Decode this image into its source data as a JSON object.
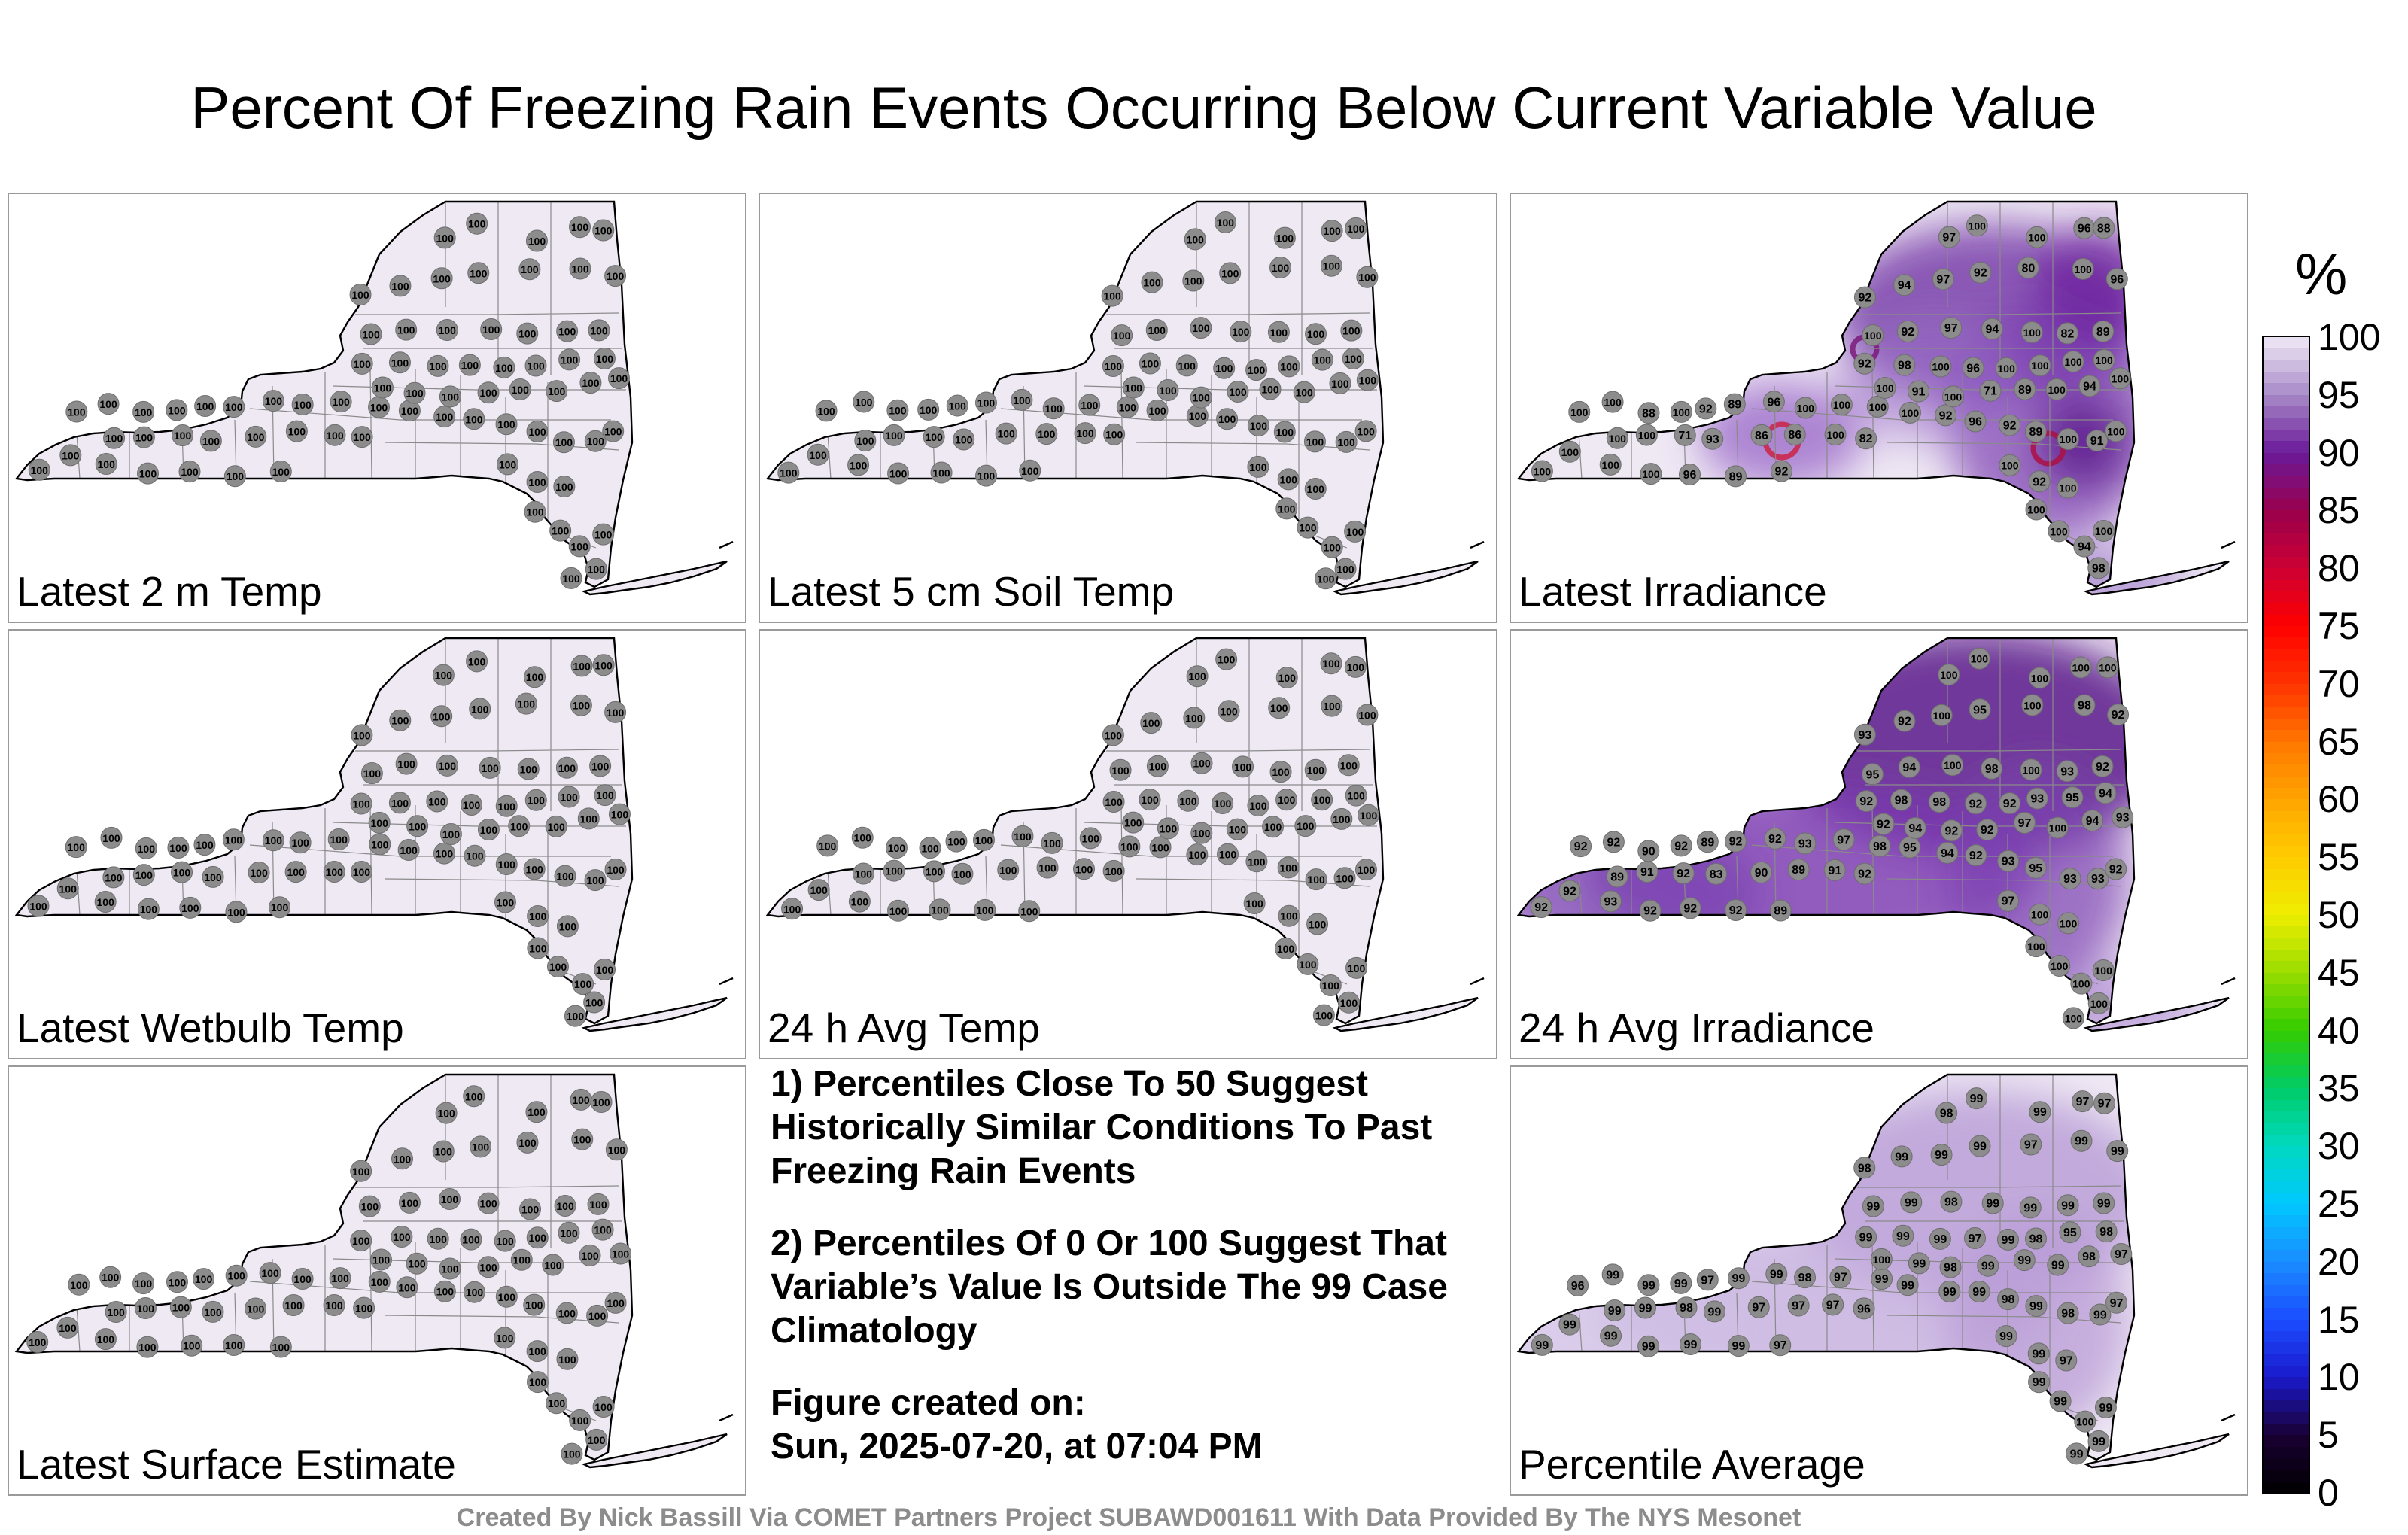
{
  "title": "Percent Of Freezing Rain Events Occurring Below Current Variable Value",
  "colorbar": {
    "unit": "%",
    "ticks": [
      "100",
      "95",
      "90",
      "85",
      "80",
      "75",
      "70",
      "65",
      "60",
      "55",
      "50",
      "45",
      "40",
      "35",
      "30",
      "25",
      "20",
      "15",
      "10",
      "5",
      "0"
    ],
    "stops": [
      {
        "v": 0,
        "c": "#000000"
      },
      {
        "v": 5,
        "c": "#1a0033"
      },
      {
        "v": 10,
        "c": "#1a1acc"
      },
      {
        "v": 15,
        "c": "#1a4dff"
      },
      {
        "v": 20,
        "c": "#1a8cff"
      },
      {
        "v": 25,
        "c": "#00c8ff"
      },
      {
        "v": 30,
        "c": "#00d9c0"
      },
      {
        "v": 35,
        "c": "#00cc66"
      },
      {
        "v": 40,
        "c": "#33cc00"
      },
      {
        "v": 45,
        "c": "#99dd00"
      },
      {
        "v": 50,
        "c": "#eeee00"
      },
      {
        "v": 55,
        "c": "#ffcc00"
      },
      {
        "v": 60,
        "c": "#ffa500"
      },
      {
        "v": 65,
        "c": "#ff7700"
      },
      {
        "v": 70,
        "c": "#ff3300"
      },
      {
        "v": 75,
        "c": "#ff0000"
      },
      {
        "v": 80,
        "c": "#cc0033"
      },
      {
        "v": 85,
        "c": "#99004d"
      },
      {
        "v": 90,
        "c": "#6a1a9a"
      },
      {
        "v": 95,
        "c": "#a889c8"
      },
      {
        "v": 100,
        "c": "#f0ebf5"
      }
    ]
  },
  "panels": [
    {
      "label": "Latest 2 m Temp",
      "type": "uniform",
      "value": "100"
    },
    {
      "label": "Latest 5 cm Soil Temp",
      "type": "uniform",
      "value": "100"
    },
    {
      "label": "Latest Irradiance",
      "type": "irradiance",
      "values": [
        "100",
        "100",
        "100",
        "100",
        "96",
        "89",
        "92",
        "100",
        "100",
        "71",
        "93",
        "86",
        "86",
        "100",
        "82",
        "100",
        "100",
        "88",
        "100",
        "92",
        "89",
        "96",
        "100",
        "100",
        "100",
        "100",
        "92",
        "96",
        "92",
        "89",
        "100",
        "91",
        "100",
        "100",
        "91",
        "100",
        "71",
        "89",
        "100",
        "94",
        "100",
        "92",
        "98",
        "100",
        "96",
        "100",
        "100",
        "100",
        "100",
        "100",
        "92",
        "97",
        "94",
        "100",
        "82",
        "89",
        "92",
        "94",
        "97",
        "92",
        "80",
        "100",
        "96",
        "100",
        "96",
        "88",
        "100",
        "97",
        "100",
        "92",
        "100",
        "100",
        "100",
        "94",
        "100",
        "98"
      ]
    },
    {
      "label": "Latest Wetbulb Temp",
      "type": "uniform",
      "value": "100"
    },
    {
      "label": "24 h Avg Temp",
      "type": "uniform",
      "value": "100"
    },
    {
      "label": "24 h Avg Irradiance",
      "type": "avgirr",
      "values": [
        "92",
        "92",
        "93",
        "92",
        "92",
        "92",
        "89",
        "89",
        "91",
        "92",
        "83",
        "90",
        "89",
        "91",
        "92",
        "92",
        "92",
        "90",
        "92",
        "89",
        "92",
        "92",
        "93",
        "97",
        "98",
        "95",
        "94",
        "92",
        "93",
        "95",
        "93",
        "93",
        "92",
        "92",
        "94",
        "92",
        "92",
        "97",
        "100",
        "94",
        "93",
        "92",
        "98",
        "98",
        "92",
        "92",
        "93",
        "95",
        "94",
        "95",
        "94",
        "100",
        "98",
        "100",
        "93",
        "92",
        "93",
        "92",
        "100",
        "95",
        "100",
        "98",
        "92",
        "100",
        "100",
        "100",
        "100",
        "100",
        "97",
        "100",
        "100",
        "100",
        "100",
        "100",
        "100",
        "100",
        "100",
        "100",
        "92",
        "100"
      ]
    },
    {
      "label": "Latest Surface Estimate",
      "type": "uniform",
      "value": "100"
    },
    {
      "label": "Percentile Average",
      "type": "avg",
      "values": [
        "99",
        "99",
        "99",
        "99",
        "99",
        "99",
        "97",
        "99",
        "99",
        "98",
        "99",
        "97",
        "97",
        "97",
        "96",
        "96",
        "99",
        "99",
        "99",
        "97",
        "99",
        "99",
        "98",
        "97",
        "99",
        "99",
        "99",
        "99",
        "98",
        "99",
        "98",
        "99",
        "97",
        "100",
        "99",
        "98",
        "99",
        "99",
        "99",
        "98",
        "97",
        "99",
        "99",
        "99",
        "97",
        "99",
        "98",
        "95",
        "98",
        "99",
        "99",
        "98",
        "99",
        "99",
        "99",
        "99",
        "98",
        "99",
        "99",
        "99",
        "97",
        "99",
        "99",
        "99",
        "97",
        "97",
        "99",
        "98",
        "99",
        "99",
        "97",
        "99",
        "99",
        "100",
        "99",
        "99",
        "99",
        "99",
        "99",
        "99"
      ]
    }
  ],
  "notes": {
    "note1": "1) Percentiles Close To 50 Suggest Historically Similar Conditions To Past Freezing Rain Events",
    "note2": "2) Percentiles Of 0 Or 100 Suggest That Variable’s Value Is Outside The 99 Case Climatology",
    "created_label": "Figure created on:",
    "created_value": "Sun, 2025-07-20, at 07:04 PM"
  },
  "credit": "Created By Nick Bassill Via COMET Partners Project SUBAWD001611 With Data Provided By The NYS Mesonet"
}
